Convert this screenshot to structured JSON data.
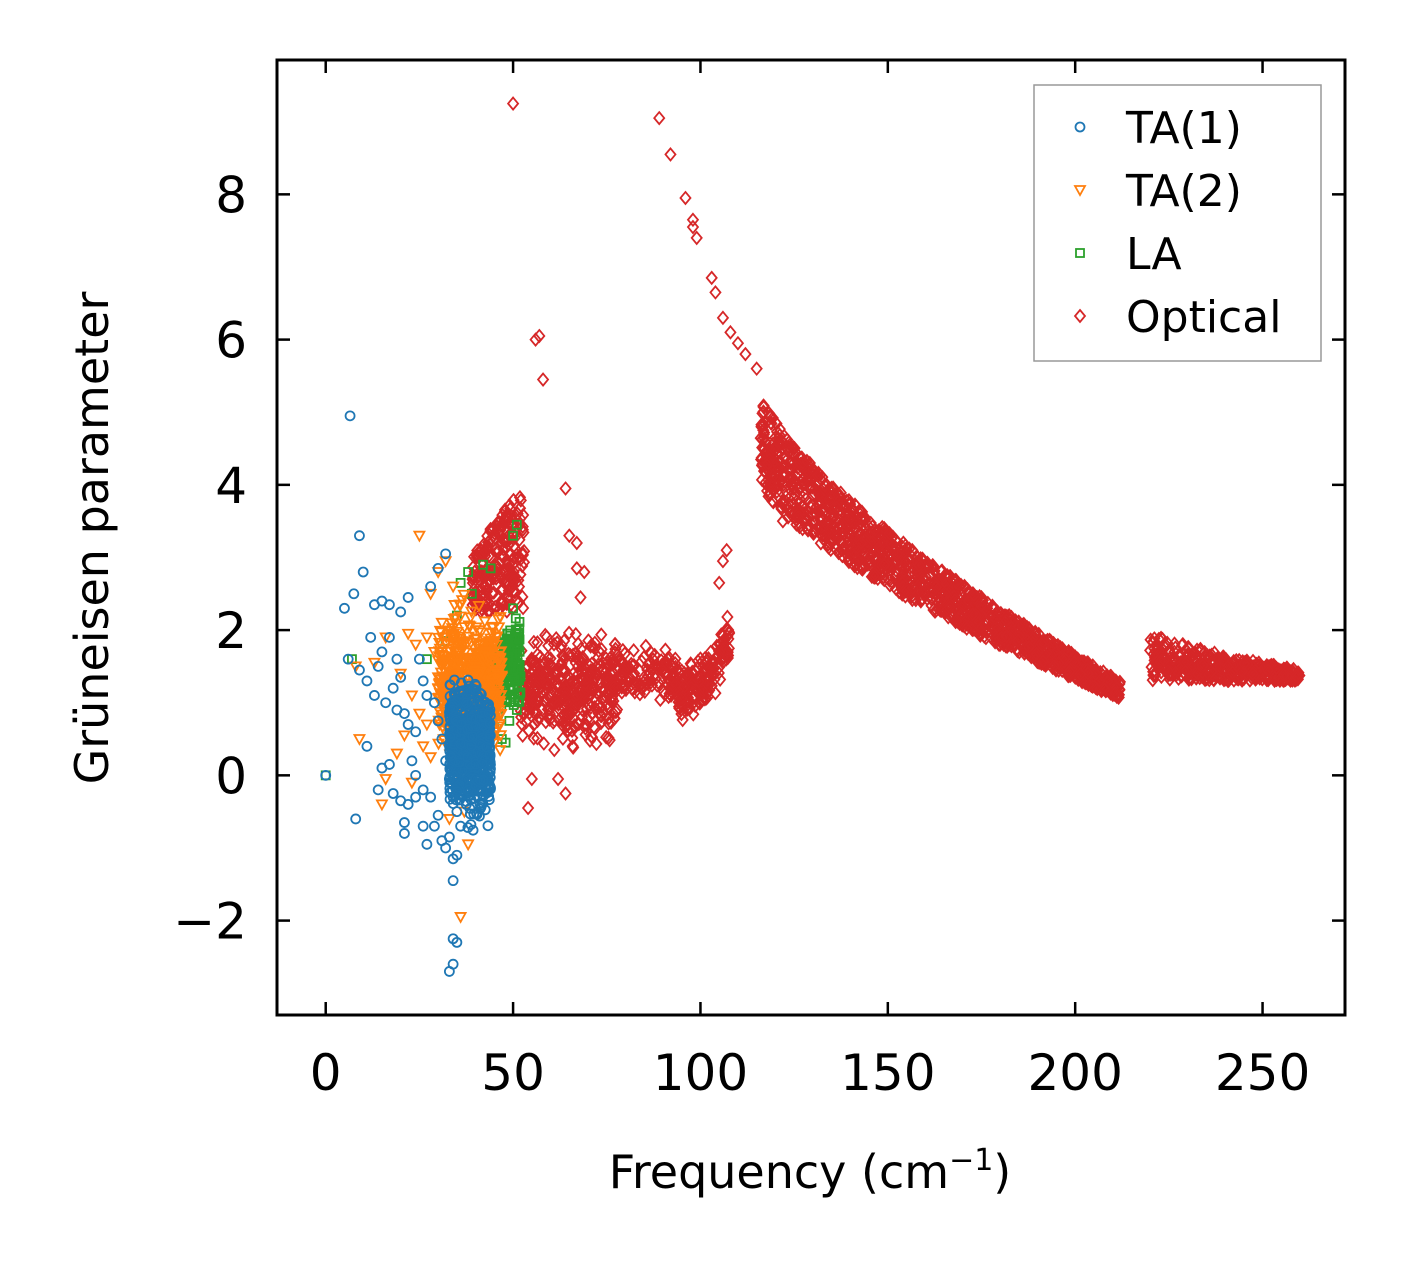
{
  "chart_data": {
    "type": "scatter",
    "title": "",
    "xlabel": "Frequency (cm",
    "xlabel_sup": "−1",
    "xlabel_end": ")",
    "ylabel": "Grüneisen parameter",
    "xlim": [
      -13,
      272
    ],
    "ylim": [
      -3.3,
      9.85
    ],
    "x_ticks": [
      0,
      50,
      100,
      150,
      200,
      250
    ],
    "x_tick_labels": [
      "0",
      "50",
      "100",
      "150",
      "200",
      "250"
    ],
    "y_ticks": [
      -2,
      0,
      2,
      4,
      6,
      8
    ],
    "y_tick_labels": [
      "−2",
      "0",
      "2",
      "4",
      "6",
      "8"
    ],
    "grid": false,
    "legend_position": "top-right",
    "series": [
      {
        "name": "TA(1)",
        "color": "#1f77b4",
        "marker": "circle",
        "points": [
          [
            0,
            0
          ],
          [
            6.5,
            4.95
          ],
          [
            9,
            3.3
          ],
          [
            10,
            2.8
          ],
          [
            5,
            2.3
          ],
          [
            7.5,
            2.5
          ],
          [
            13,
            2.35
          ],
          [
            15,
            2.4
          ],
          [
            17,
            2.35
          ],
          [
            20,
            2.25
          ],
          [
            22,
            2.45
          ],
          [
            12,
            1.9
          ],
          [
            15,
            1.7
          ],
          [
            17,
            1.9
          ],
          [
            19,
            1.6
          ],
          [
            14,
            1.5
          ],
          [
            11,
            1.3
          ],
          [
            13,
            1.1
          ],
          [
            18,
            1.2
          ],
          [
            20,
            1.35
          ],
          [
            16,
            1.0
          ],
          [
            19,
            0.9
          ],
          [
            21,
            0.85
          ],
          [
            22,
            0.7
          ],
          [
            24,
            0.6
          ],
          [
            11,
            0.4
          ],
          [
            15,
            0.1
          ],
          [
            17,
            0.15
          ],
          [
            14,
            -0.2
          ],
          [
            18,
            -0.25
          ],
          [
            20,
            -0.35
          ],
          [
            22,
            -0.4
          ],
          [
            24,
            -0.3
          ],
          [
            21,
            -0.65
          ],
          [
            21,
            -0.8
          ],
          [
            26,
            -0.7
          ],
          [
            27,
            -0.95
          ],
          [
            29,
            -0.7
          ],
          [
            30,
            -0.55
          ],
          [
            31,
            -0.9
          ],
          [
            32,
            -1.0
          ],
          [
            34,
            -1.15
          ],
          [
            35,
            -1.1
          ],
          [
            33,
            -0.85
          ],
          [
            8,
            -0.6
          ],
          [
            34,
            -1.45
          ],
          [
            34,
            -2.25
          ],
          [
            35,
            -2.3
          ],
          [
            34,
            -2.6
          ],
          [
            33,
            -2.7
          ],
          [
            32,
            3.05
          ],
          [
            30,
            2.85
          ],
          [
            28,
            2.6
          ],
          [
            29,
            1.0
          ],
          [
            30,
            0.75
          ],
          [
            31,
            0.5
          ],
          [
            32,
            0.2
          ],
          [
            33,
            -0.05
          ],
          [
            34,
            -0.3
          ],
          [
            35,
            -0.5
          ],
          [
            36,
            -0.7
          ],
          [
            25,
            1.6
          ],
          [
            26,
            1.3
          ],
          [
            27,
            1.1
          ],
          [
            23,
            0.2
          ],
          [
            24,
            0.0
          ],
          [
            26,
            -0.2
          ],
          [
            28,
            -0.3
          ],
          [
            9,
            1.45
          ],
          [
            6,
            1.6
          ]
        ],
        "cluster": {
          "count": 700,
          "x_range": [
            33,
            44
          ],
          "y_center": 0.4,
          "y_spread": 1.25,
          "top_x": 37,
          "top_y": 1.7,
          "tail_y": -1.1
        }
      },
      {
        "name": "TA(2)",
        "color": "#ff7f0e",
        "marker": "triangle-down",
        "points": [
          [
            25,
            3.3
          ],
          [
            30,
            2.8
          ],
          [
            32,
            2.95
          ],
          [
            28,
            2.5
          ],
          [
            34,
            2.6
          ],
          [
            36,
            2.35
          ],
          [
            31,
            2.1
          ],
          [
            27,
            1.9
          ],
          [
            29,
            1.7
          ],
          [
            22,
            1.95
          ],
          [
            24,
            1.8
          ],
          [
            16,
            1.9
          ],
          [
            13,
            1.55
          ],
          [
            20,
            1.4
          ],
          [
            23,
            1.1
          ],
          [
            25,
            0.85
          ],
          [
            27,
            0.7
          ],
          [
            8,
            1.5
          ],
          [
            9,
            0.5
          ],
          [
            15,
            -0.4
          ],
          [
            16,
            -0.05
          ],
          [
            41,
            -0.2
          ],
          [
            38,
            -0.95
          ],
          [
            36,
            -1.95
          ],
          [
            33,
            -0.6
          ],
          [
            26,
            0.4
          ],
          [
            28,
            0.25
          ],
          [
            23,
            -0.1
          ],
          [
            21,
            0.55
          ],
          [
            19,
            0.3
          ],
          [
            35,
            0.05
          ],
          [
            37,
            -0.5
          ],
          [
            30,
            1.35
          ],
          [
            32,
            1.6
          ],
          [
            34,
            1.9
          ]
        ],
        "cluster": {
          "count": 520,
          "x_range": [
            30,
            47
          ],
          "y_center": 1.3,
          "y_spread": 1.35,
          "top_x": 38,
          "top_y": 2.85,
          "tail_y": -0.3
        }
      },
      {
        "name": "LA",
        "color": "#2ca02c",
        "marker": "square",
        "points": [
          [
            0,
            0
          ],
          [
            7,
            1.6
          ],
          [
            27,
            1.6
          ],
          [
            32,
            1.85
          ],
          [
            35,
            2.2
          ],
          [
            36,
            2.65
          ],
          [
            38,
            2.8
          ],
          [
            39,
            2.5
          ],
          [
            42,
            2.9
          ],
          [
            44,
            2.85
          ],
          [
            50,
            2.3
          ],
          [
            51,
            2.0
          ],
          [
            50,
            3.3
          ],
          [
            51,
            3.45
          ],
          [
            47,
            0.5
          ],
          [
            48,
            0.45
          ],
          [
            49,
            0.75
          ],
          [
            51,
            0.9
          ],
          [
            45,
            0.65
          ],
          [
            46,
            0.85
          ],
          [
            44,
            1.4
          ]
        ],
        "cluster": {
          "count": 380,
          "x_range": [
            39,
            52
          ],
          "y_center": 1.55,
          "y_spread": 0.9,
          "top_x": 51,
          "top_y": 2.2,
          "tail_y": 0.5
        }
      },
      {
        "name": "Optical",
        "color": "#d62728",
        "marker": "diamond",
        "points": [
          [
            50,
            9.25
          ],
          [
            89,
            9.05
          ],
          [
            92,
            8.55
          ],
          [
            96,
            7.95
          ],
          [
            98,
            7.65
          ],
          [
            99,
            7.4
          ],
          [
            98,
            7.55
          ],
          [
            103,
            6.85
          ],
          [
            104,
            6.65
          ],
          [
            106,
            6.3
          ],
          [
            108,
            6.1
          ],
          [
            110,
            5.95
          ],
          [
            112,
            5.8
          ],
          [
            115,
            5.6
          ],
          [
            57,
            6.05
          ],
          [
            56,
            6.0
          ],
          [
            58,
            5.45
          ],
          [
            64,
            3.95
          ],
          [
            65,
            3.3
          ],
          [
            67,
            3.2
          ],
          [
            67,
            2.85
          ],
          [
            69,
            2.8
          ],
          [
            68,
            2.45
          ],
          [
            54,
            -0.45
          ],
          [
            55,
            -0.05
          ],
          [
            62,
            -0.05
          ],
          [
            64,
            -0.25
          ],
          [
            61,
            0.35
          ],
          [
            107,
            3.1
          ],
          [
            106,
            2.95
          ],
          [
            105,
            2.65
          ],
          [
            122,
            3.5
          ],
          [
            126,
            3.55
          ],
          [
            130,
            3.6
          ]
        ],
        "segments": [
          {
            "x_range": [
              39,
              53
            ],
            "y_top_start": 2.9,
            "y_top_end": 3.95,
            "y_bot": 2.25,
            "count": 230
          },
          {
            "x_range": [
              52,
              78
            ],
            "y_center": 1.2,
            "y_spread": 0.95,
            "count": 420
          },
          {
            "x_range": [
              78,
              94
            ],
            "y_center": 1.35,
            "y_spread": 0.5,
            "count": 120
          },
          {
            "x_range": [
              94,
              108
            ],
            "y_center_start": 1.1,
            "y_center_end": 1.9,
            "y_spread": 0.55,
            "count": 170
          },
          {
            "x_range": [
              116,
              212
            ],
            "y_top_start": 5.3,
            "y_top_end": 1.3,
            "y_bot_start": 4.05,
            "y_bot_end": 1.05,
            "count": 1500
          },
          {
            "x_range": [
              220,
              260
            ],
            "y_top_start": 2.0,
            "y_top_end": 1.45,
            "y_bot_start": 1.3,
            "y_bot_end": 1.3,
            "count": 430
          }
        ]
      }
    ]
  }
}
